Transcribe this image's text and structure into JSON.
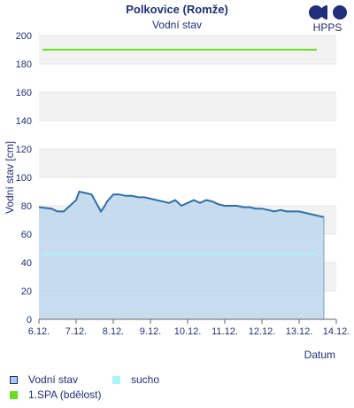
{
  "header": {
    "title": "Polkovice (Romže)",
    "subtitle": "Vodní stav",
    "logo_text": "HPPS"
  },
  "legend": {
    "items": [
      {
        "label": "Vodní stav",
        "color": "#a9c8ea",
        "border": "#1f2f7a"
      },
      {
        "label": "sucho",
        "color": "#aaf5f5",
        "border": "#aaf5f5"
      },
      {
        "label": "1.SPA (bdělost)",
        "color": "#66dd22",
        "border": "#66dd22"
      }
    ]
  },
  "colors": {
    "axis_text": "#1f2f7a",
    "line": "#2f6fa8",
    "fill": "#c2d8ee",
    "band": "#f2f2f2",
    "grid": "#e6e6e6",
    "spa": "#66dd22",
    "sucho": "#aaf5f5"
  },
  "chart_data": {
    "type": "area",
    "title": "Polkovice (Romže)",
    "subtitle": "Vodní stav",
    "xlabel": "Datum",
    "ylabel": "Vodní stav [cm]",
    "ylim": [
      0,
      200
    ],
    "yticks": [
      0,
      20,
      40,
      60,
      80,
      100,
      120,
      140,
      160,
      180,
      200
    ],
    "xlim": [
      "2024-12-06",
      "2024-12-14"
    ],
    "xticks": [
      "6.12.",
      "7.12.",
      "8.12.",
      "9.12.",
      "10.12.",
      "11.12.",
      "12.12.",
      "13.12.",
      "14.12."
    ],
    "grid": true,
    "legend_placement": "bottom",
    "thresholds": [
      {
        "name": "1.SPA (bdělost)",
        "value": 190
      },
      {
        "name": "sucho",
        "value": 46
      }
    ],
    "series": [
      {
        "name": "Vodní stav",
        "x": [
          "2024-12-06T00:00",
          "2024-12-06T08:00",
          "2024-12-06T12:00",
          "2024-12-06T16:00",
          "2024-12-06T20:00",
          "2024-12-07T00:00",
          "2024-12-07T02:00",
          "2024-12-07T06:00",
          "2024-12-07T10:00",
          "2024-12-07T14:00",
          "2024-12-07T16:00",
          "2024-12-07T18:00",
          "2024-12-07T20:00",
          "2024-12-08T00:00",
          "2024-12-08T04:00",
          "2024-12-08T08:00",
          "2024-12-08T12:00",
          "2024-12-08T16:00",
          "2024-12-08T20:00",
          "2024-12-09T00:00",
          "2024-12-09T04:00",
          "2024-12-09T08:00",
          "2024-12-09T12:00",
          "2024-12-09T16:00",
          "2024-12-09T20:00",
          "2024-12-10T00:00",
          "2024-12-10T04:00",
          "2024-12-10T08:00",
          "2024-12-10T12:00",
          "2024-12-10T16:00",
          "2024-12-10T20:00",
          "2024-12-11T00:00",
          "2024-12-11T04:00",
          "2024-12-11T08:00",
          "2024-12-11T12:00",
          "2024-12-11T16:00",
          "2024-12-11T20:00",
          "2024-12-12T00:00",
          "2024-12-12T04:00",
          "2024-12-12T08:00",
          "2024-12-12T12:00",
          "2024-12-12T16:00",
          "2024-12-12T20:00",
          "2024-12-13T00:00",
          "2024-12-13T04:00",
          "2024-12-13T08:00",
          "2024-12-13T12:00",
          "2024-12-13T16:00"
        ],
        "values": [
          79,
          78,
          76,
          76,
          80,
          84,
          90,
          89,
          88,
          80,
          76,
          79,
          83,
          88,
          88,
          87,
          87,
          86,
          86,
          85,
          84,
          83,
          82,
          84,
          80,
          82,
          84,
          82,
          84,
          83,
          81,
          80,
          80,
          80,
          79,
          79,
          78,
          78,
          77,
          76,
          77,
          76,
          76,
          76,
          75,
          74,
          73,
          72
        ]
      }
    ]
  }
}
